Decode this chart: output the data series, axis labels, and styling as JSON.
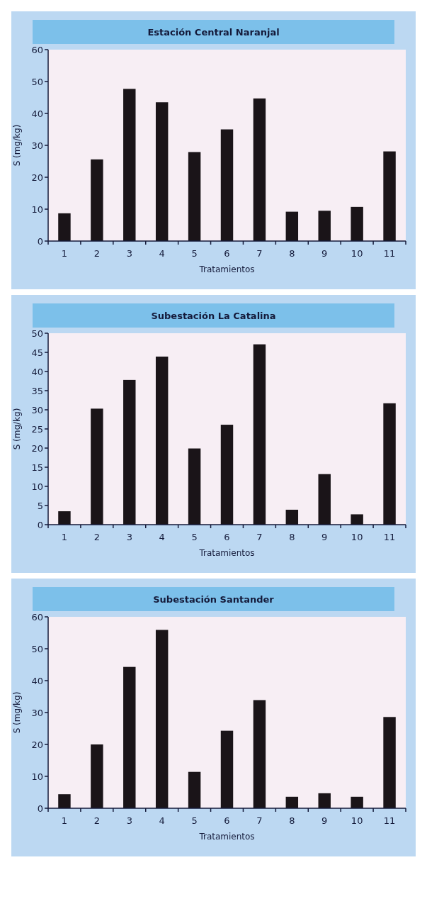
{
  "chart_data": [
    {
      "type": "bar",
      "title": "Estación Central Naranjal",
      "xlabel": "Tratamientos",
      "ylabel": "S (mg/kg)",
      "categories": [
        "1",
        "2",
        "3",
        "4",
        "5",
        "6",
        "7",
        "8",
        "9",
        "10",
        "11"
      ],
      "values": [
        8.7,
        25.6,
        47.7,
        43.5,
        27.9,
        35,
        44.7,
        9.2,
        9.5,
        10.7,
        28.1
      ],
      "color": "#1a1418",
      "ylim": [
        0,
        60
      ],
      "yticks": [
        0,
        10,
        20,
        30,
        40,
        50,
        60
      ],
      "grid": false
    },
    {
      "type": "bar",
      "title": "Subestación La Catalina",
      "xlabel": "Tratamientos",
      "ylabel": "S (mg/kg)",
      "categories": [
        "1",
        "2",
        "3",
        "4",
        "5",
        "6",
        "7",
        "8",
        "9",
        "10",
        "11"
      ],
      "values": [
        3.5,
        30.3,
        37.8,
        43.9,
        19.9,
        26.1,
        47.1,
        3.9,
        13.2,
        2.7,
        31.7
      ],
      "color": "#1a1418",
      "ylim": [
        0,
        50
      ],
      "yticks": [
        0,
        5,
        10,
        15,
        20,
        25,
        30,
        35,
        40,
        45,
        50
      ],
      "grid": false
    },
    {
      "type": "bar",
      "title": "Subestación Santander",
      "xlabel": "Tratamientos",
      "ylabel": "S (mg/kg)",
      "categories": [
        "1",
        "2",
        "3",
        "4",
        "5",
        "6",
        "7",
        "8",
        "9",
        "10",
        "11"
      ],
      "values": [
        4.4,
        20,
        44.3,
        55.9,
        11.4,
        24.3,
        33.9,
        3.6,
        4.7,
        3.6,
        28.6
      ],
      "color": "#1a1418",
      "ylim": [
        0,
        60
      ],
      "yticks": [
        0,
        10,
        20,
        30,
        40,
        50,
        60
      ],
      "grid": false
    }
  ]
}
